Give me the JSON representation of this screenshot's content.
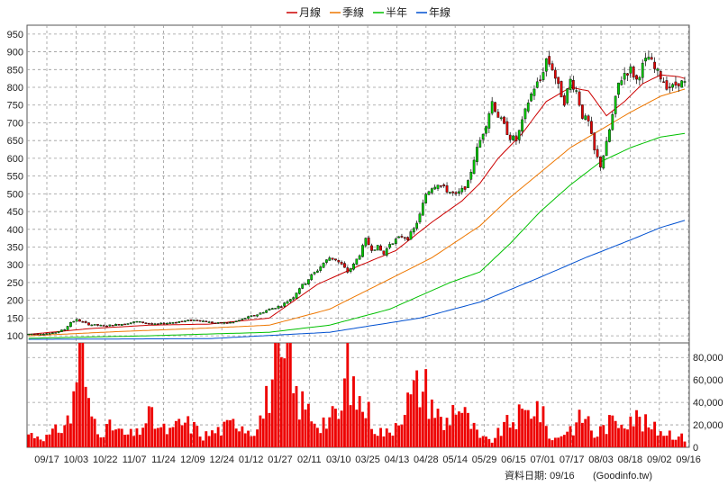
{
  "colors": {
    "up_candle": "#00c800",
    "down_candle": "#e00000",
    "volume_bar": "#ee0000",
    "grid": "#9a9a9a",
    "ma_month": "#cc0000",
    "ma_quarter": "#ee7700",
    "ma_half": "#00c000",
    "ma_year": "#0050d0"
  },
  "legend": [
    {
      "label": "月線",
      "color": "#cc0000"
    },
    {
      "label": "季線",
      "color": "#ee7700"
    },
    {
      "label": "半年",
      "color": "#00c000"
    },
    {
      "label": "年線",
      "color": "#0050d0"
    }
  ],
  "footer": {
    "date_label": "資料日期: 09/16",
    "source": "(Goodinfo.tw)"
  },
  "chart_data": [
    {
      "type": "candlestick",
      "title": "",
      "y_ticks": [
        100,
        150,
        200,
        250,
        300,
        350,
        400,
        450,
        500,
        550,
        600,
        650,
        700,
        750,
        800,
        850,
        900,
        950
      ],
      "ylim": [
        80,
        975
      ],
      "grid": true,
      "legend_position": "top-center",
      "x_ticks": [
        "09/17",
        "10/03",
        "10/22",
        "11/07",
        "11/24",
        "12/09",
        "12/24",
        "01/12",
        "01/27",
        "02/11",
        "03/10",
        "03/25",
        "04/13",
        "04/28",
        "05/14",
        "05/29",
        "06/15",
        "07/01",
        "07/17",
        "08/03",
        "08/18",
        "09/02",
        "09/16"
      ],
      "price_anchors": [
        [
          0,
          105
        ],
        [
          8,
          107
        ],
        [
          12,
          118
        ],
        [
          14,
          138
        ],
        [
          16,
          145
        ],
        [
          20,
          132
        ],
        [
          25,
          128
        ],
        [
          30,
          132
        ],
        [
          36,
          140
        ],
        [
          42,
          132
        ],
        [
          50,
          140
        ],
        [
          56,
          145
        ],
        [
          62,
          135
        ],
        [
          68,
          138
        ],
        [
          72,
          150
        ],
        [
          76,
          160
        ],
        [
          80,
          175
        ],
        [
          84,
          185
        ],
        [
          88,
          210
        ],
        [
          90,
          235
        ],
        [
          92,
          250
        ],
        [
          94,
          270
        ],
        [
          96,
          285
        ],
        [
          98,
          305
        ],
        [
          100,
          320
        ],
        [
          102,
          315
        ],
        [
          104,
          300
        ],
        [
          106,
          280
        ],
        [
          108,
          300
        ],
        [
          110,
          330
        ],
        [
          112,
          370
        ],
        [
          114,
          345
        ],
        [
          116,
          350
        ],
        [
          118,
          330
        ],
        [
          120,
          360
        ],
        [
          124,
          380
        ],
        [
          126,
          375
        ],
        [
          128,
          400
        ],
        [
          130,
          440
        ],
        [
          132,
          500
        ],
        [
          134,
          520
        ],
        [
          136,
          530
        ],
        [
          138,
          515
        ],
        [
          140,
          505
        ],
        [
          142,
          495
        ],
        [
          144,
          510
        ],
        [
          146,
          530
        ],
        [
          148,
          600
        ],
        [
          150,
          650
        ],
        [
          152,
          700
        ],
        [
          154,
          760
        ],
        [
          156,
          720
        ],
        [
          158,
          690
        ],
        [
          160,
          660
        ],
        [
          162,
          650
        ],
        [
          164,
          700
        ],
        [
          166,
          760
        ],
        [
          168,
          800
        ],
        [
          170,
          820
        ],
        [
          172,
          880
        ],
        [
          174,
          855
        ],
        [
          176,
          800
        ],
        [
          178,
          760
        ],
        [
          180,
          820
        ],
        [
          182,
          790
        ],
        [
          184,
          720
        ],
        [
          186,
          700
        ],
        [
          188,
          620
        ],
        [
          190,
          580
        ],
        [
          192,
          640
        ],
        [
          194,
          720
        ],
        [
          196,
          810
        ],
        [
          198,
          840
        ],
        [
          200,
          850
        ],
        [
          202,
          820
        ],
        [
          204,
          860
        ],
        [
          206,
          885
        ],
        [
          208,
          850
        ],
        [
          210,
          830
        ],
        [
          212,
          805
        ],
        [
          214,
          800
        ],
        [
          216,
          815
        ],
        [
          218,
          810
        ]
      ],
      "series": [
        {
          "name": "月線",
          "points": [
            [
              0,
              104
            ],
            [
              20,
              120
            ],
            [
              40,
              130
            ],
            [
              60,
              133
            ],
            [
              80,
              150
            ],
            [
              96,
              245
            ],
            [
              110,
              298
            ],
            [
              122,
              340
            ],
            [
              134,
              420
            ],
            [
              144,
              480
            ],
            [
              150,
              530
            ],
            [
              156,
              600
            ],
            [
              164,
              670
            ],
            [
              172,
              760
            ],
            [
              180,
              800
            ],
            [
              186,
              790
            ],
            [
              192,
              720
            ],
            [
              198,
              760
            ],
            [
              204,
              810
            ],
            [
              210,
              835
            ],
            [
              216,
              830
            ],
            [
              218,
              825
            ]
          ]
        },
        {
          "name": "季線",
          "points": [
            [
              0,
              100
            ],
            [
              30,
              112
            ],
            [
              60,
              122
            ],
            [
              80,
              130
            ],
            [
              100,
              175
            ],
            [
              120,
              260
            ],
            [
              134,
              320
            ],
            [
              150,
              410
            ],
            [
              160,
              490
            ],
            [
              170,
              560
            ],
            [
              180,
              630
            ],
            [
              190,
              680
            ],
            [
              200,
              730
            ],
            [
              210,
              775
            ],
            [
              218,
              795
            ]
          ]
        },
        {
          "name": "半年",
          "points": [
            [
              0,
              93
            ],
            [
              40,
              100
            ],
            [
              80,
              110
            ],
            [
              100,
              130
            ],
            [
              120,
              175
            ],
            [
              140,
              250
            ],
            [
              150,
              280
            ],
            [
              160,
              360
            ],
            [
              170,
              450
            ],
            [
              180,
              525
            ],
            [
              190,
              590
            ],
            [
              200,
              630
            ],
            [
              210,
              660
            ],
            [
              218,
              670
            ]
          ]
        },
        {
          "name": "年線",
          "points": [
            [
              0,
              90
            ],
            [
              60,
              92
            ],
            [
              100,
              110
            ],
            [
              130,
              150
            ],
            [
              150,
              195
            ],
            [
              170,
              265
            ],
            [
              185,
              320
            ],
            [
              200,
              370
            ],
            [
              210,
              405
            ],
            [
              218,
              425
            ]
          ]
        }
      ]
    },
    {
      "type": "bar",
      "title": "",
      "y_ticks": [
        0,
        20000,
        40000,
        60000,
        80000
      ],
      "y_tick_labels": [
        "0",
        "20,000",
        "40,000",
        "60,000",
        "80,000"
      ],
      "ylim": [
        0,
        93000
      ],
      "grid": true,
      "volume_anchors": [
        [
          0,
          12000
        ],
        [
          6,
          9000
        ],
        [
          10,
          16000
        ],
        [
          14,
          26000
        ],
        [
          16,
          70000
        ],
        [
          17,
          90000
        ],
        [
          18,
          80000
        ],
        [
          20,
          34000
        ],
        [
          24,
          15000
        ],
        [
          28,
          18000
        ],
        [
          32,
          11000
        ],
        [
          36,
          12000
        ],
        [
          40,
          28000
        ],
        [
          44,
          16000
        ],
        [
          48,
          14000
        ],
        [
          50,
          22000
        ],
        [
          54,
          20000
        ],
        [
          58,
          10000
        ],
        [
          62,
          14000
        ],
        [
          66,
          18000
        ],
        [
          70,
          24000
        ],
        [
          74,
          14000
        ],
        [
          78,
          30000
        ],
        [
          82,
          72000
        ],
        [
          84,
          60000
        ],
        [
          86,
          85000
        ],
        [
          88,
          50000
        ],
        [
          90,
          40000
        ],
        [
          94,
          30000
        ],
        [
          96,
          22000
        ],
        [
          100,
          25000
        ],
        [
          104,
          30000
        ],
        [
          106,
          85000
        ],
        [
          108,
          45000
        ],
        [
          112,
          35000
        ],
        [
          116,
          15000
        ],
        [
          120,
          12000
        ],
        [
          124,
          35000
        ],
        [
          126,
          40000
        ],
        [
          128,
          48000
        ],
        [
          130,
          56000
        ],
        [
          132,
          52000
        ],
        [
          134,
          40000
        ],
        [
          138,
          18000
        ],
        [
          142,
          40000
        ],
        [
          146,
          24000
        ],
        [
          150,
          8000
        ],
        [
          154,
          6000
        ],
        [
          158,
          18000
        ],
        [
          162,
          26000
        ],
        [
          166,
          30000
        ],
        [
          168,
          40000
        ],
        [
          170,
          32000
        ],
        [
          174,
          6000
        ],
        [
          178,
          14000
        ],
        [
          182,
          20000
        ],
        [
          184,
          28000
        ],
        [
          186,
          24000
        ],
        [
          188,
          10000
        ],
        [
          192,
          20000
        ],
        [
          196,
          24000
        ],
        [
          200,
          30000
        ],
        [
          204,
          22000
        ],
        [
          208,
          16000
        ],
        [
          212,
          14000
        ],
        [
          216,
          10000
        ],
        [
          218,
          8000
        ]
      ]
    }
  ]
}
